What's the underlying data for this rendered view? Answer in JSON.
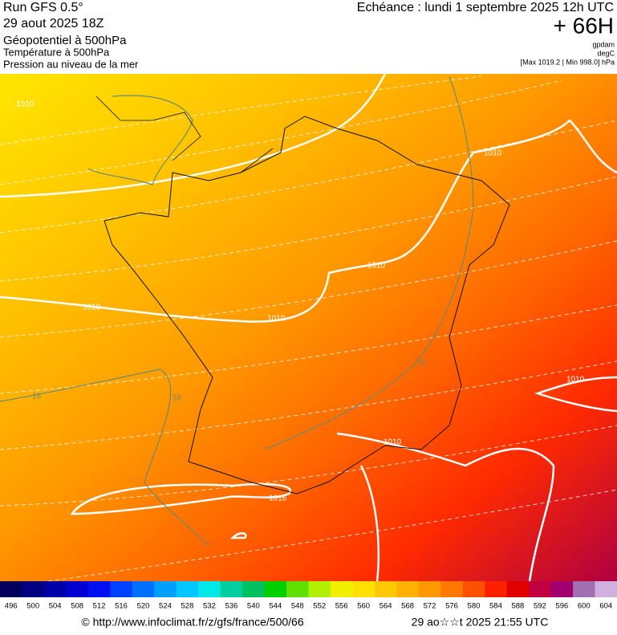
{
  "header": {
    "run": "Run GFS 0.5°",
    "date": "29 aout 2025 18Z",
    "param1": "Géopotentiel à 500hPa",
    "param2": "Température à 500hPa",
    "param3": "Pression au niveau de la mer",
    "echeance": "Echéance : lundi 1 septembre 2025 12h UTC",
    "lead": "+ 66H",
    "unit1": "gpdam",
    "unit2": "degC",
    "range": "[Max 1019.2 | Min 998.0] hPa"
  },
  "map_labels": [
    "1010",
    "1010",
    "1010",
    "1010",
    "1010",
    "1010",
    "1010",
    "1016",
    "16",
    "16",
    "16"
  ],
  "colorbar": {
    "labels": [
      496,
      500,
      504,
      508,
      512,
      516,
      520,
      524,
      528,
      532,
      536,
      540,
      544,
      548,
      552,
      556,
      560,
      564,
      568,
      572,
      576,
      580,
      584,
      588,
      592,
      596,
      600,
      604
    ],
    "colors": [
      "#00005a",
      "#000080",
      "#0000a8",
      "#0000d0",
      "#0010f0",
      "#0040ff",
      "#0070ff",
      "#00a0ff",
      "#00c8ff",
      "#00e8e8",
      "#00d0a0",
      "#00c060",
      "#00d000",
      "#60e000",
      "#b0f000",
      "#f0f000",
      "#ffe000",
      "#ffc800",
      "#ffb000",
      "#ff9800",
      "#ff7800",
      "#ff5000",
      "#ff2000",
      "#e00000",
      "#c00040",
      "#a00070",
      "#a070b0",
      "#d0b0e0"
    ]
  },
  "footer": {
    "source": "© http://www.infoclimat.fr/z/gfs/france/500/66",
    "time": "29 ao☆☆t 2025 21:55 UTC"
  }
}
